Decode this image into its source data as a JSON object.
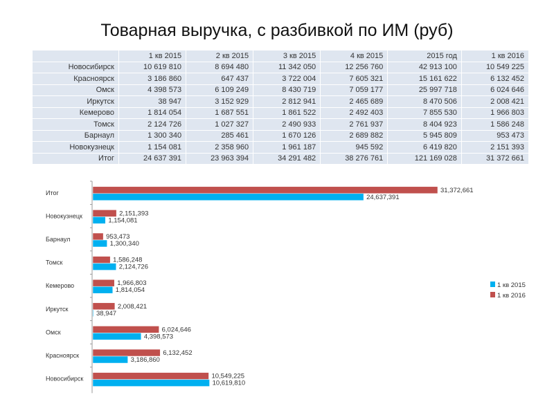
{
  "title": "Товарная выручка, с разбивкой по ИМ (руб)",
  "table": {
    "headers": [
      "",
      "1 кв 2015",
      "2 кв 2015",
      "3 кв 2015",
      "4 кв 2015",
      "2015 год",
      "1 кв 2016"
    ],
    "rows": [
      [
        "Новосибирск",
        "10 619 810",
        "8 694 480",
        "11 342 050",
        "12 256 760",
        "42 913 100",
        "10 549 225"
      ],
      [
        "Красноярск",
        "3 186 860",
        "647 437",
        "3 722 004",
        "7 605 321",
        "15 161 622",
        "6 132 452"
      ],
      [
        "Омск",
        "4 398 573",
        "6 109 249",
        "8 430 719",
        "7 059 177",
        "25 997 718",
        "6 024 646"
      ],
      [
        "Иркутск",
        "38 947",
        "3 152 929",
        "2 812 941",
        "2 465 689",
        "8 470 506",
        "2 008 421"
      ],
      [
        "Кемерово",
        "1 814 054",
        "1 687 551",
        "1 861 522",
        "2 492 403",
        "7 855 530",
        "1 966 803"
      ],
      [
        "Томск",
        "2 124 726",
        "1 027 327",
        "2 490 933",
        "2 761 937",
        "8 404 923",
        "1 586 248"
      ],
      [
        "Барнаул",
        "1 300 340",
        "285 461",
        "1 670 126",
        "2 689 882",
        "5 945 809",
        "953 473"
      ],
      [
        "Новокузнецк",
        "1 154 081",
        "2 358 960",
        "1 961 187",
        "945 592",
        "6 419 820",
        "2 151 393"
      ],
      [
        "Итог",
        "24 637 391",
        "23 963 394",
        "34 291 482",
        "38 276 761",
        "121 169 028",
        "31 372 661"
      ]
    ]
  },
  "chart_data": {
    "type": "bar",
    "orientation": "horizontal",
    "categories": [
      "Итог",
      "Новокузнецк",
      "Барнаул",
      "Томск",
      "Кемерово",
      "Иркутск",
      "Омск",
      "Красноярск",
      "Новосибирск"
    ],
    "series": [
      {
        "name": "1 кв 2016",
        "color": "#c0504d",
        "values": [
          31372661,
          2151393,
          953473,
          1586248,
          1966803,
          2008421,
          6024646,
          6132452,
          10549225
        ],
        "labels": [
          "31,372,661",
          "2,151,393",
          "953,473",
          "1,586,248",
          "1,966,803",
          "2,008,421",
          "6,024,646",
          "6,132,452",
          "10,549,225"
        ]
      },
      {
        "name": "1 кв 2015",
        "color": "#00b0f0",
        "values": [
          24637391,
          1154081,
          1300340,
          2124726,
          1814054,
          38947,
          4398573,
          3186860,
          10619810
        ],
        "labels": [
          "24,637,391",
          "1,154,081",
          "1,300,340",
          "2,124,726",
          "1,814,054",
          "38,947",
          "4,398,573",
          "3,186,860",
          "10,619,810"
        ]
      }
    ],
    "legend_order": [
      "1 кв 2015",
      "1 кв 2016"
    ],
    "legend": "right",
    "grid": false
  }
}
